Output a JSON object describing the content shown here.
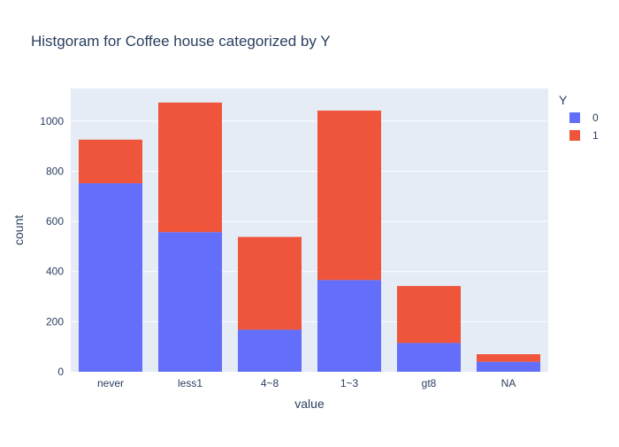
{
  "chart_data": {
    "type": "bar",
    "barmode": "stack",
    "title": "Histgoram for Coffee house categorized by Y",
    "xlabel": "value",
    "ylabel": "count",
    "categories": [
      "never",
      "less1",
      "4~8",
      "1~3",
      "gt8",
      "NA"
    ],
    "series": [
      {
        "name": "0",
        "values": [
          752,
          557,
          168,
          366,
          115,
          40
        ],
        "color": "#636efa"
      },
      {
        "name": "1",
        "values": [
          174,
          517,
          370,
          676,
          227,
          30
        ],
        "color": "#ef553b"
      }
    ],
    "ylim": [
      0,
      1130
    ],
    "yticks": [
      0,
      200,
      400,
      600,
      800,
      1000
    ],
    "grid": true,
    "legend": {
      "title": "Y",
      "placement": "top-right"
    },
    "plot_background": "#e5ecf6"
  }
}
